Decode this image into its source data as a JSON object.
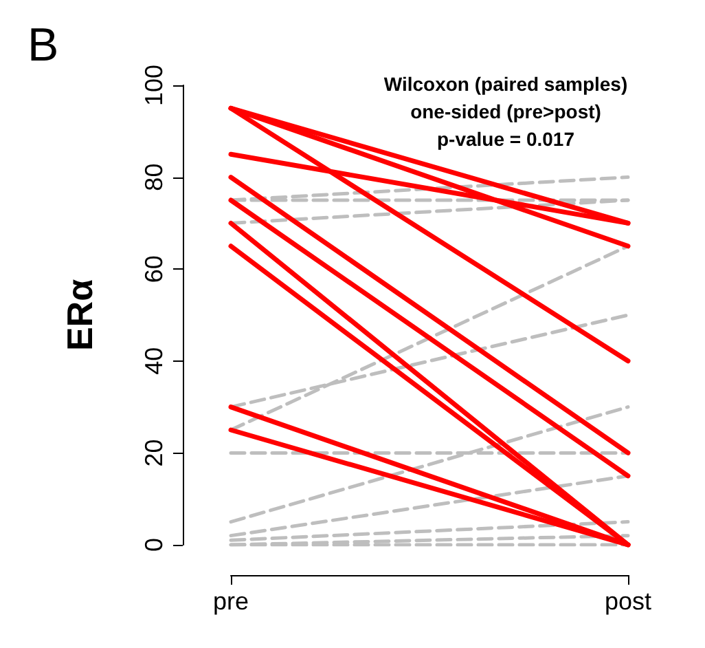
{
  "chart_data": {
    "type": "line",
    "title": "Wilcoxon (paired samples)\none-sided (pre>post)\np-value = 0.017",
    "annotations": [
      "B"
    ],
    "ylabel": "ERα",
    "categories": [
      "pre",
      "post"
    ],
    "ylim": [
      0,
      100
    ],
    "yticks": [
      0,
      20,
      40,
      60,
      80,
      100
    ],
    "grid": false,
    "marker": "none",
    "series": [
      {
        "color": "#bebebe",
        "line_style": "dashed",
        "values": [
          75,
          80
        ]
      },
      {
        "color": "#bebebe",
        "line_style": "dashed",
        "values": [
          75,
          75
        ]
      },
      {
        "color": "#bebebe",
        "line_style": "dashed",
        "values": [
          70,
          75
        ]
      },
      {
        "color": "#bebebe",
        "line_style": "dashed",
        "values": [
          25,
          65
        ]
      },
      {
        "color": "#bebebe",
        "line_style": "dashed",
        "values": [
          30,
          50
        ]
      },
      {
        "color": "#bebebe",
        "line_style": "dashed",
        "values": [
          20,
          20
        ]
      },
      {
        "color": "#bebebe",
        "line_style": "dashed",
        "values": [
          5,
          30
        ]
      },
      {
        "color": "#bebebe",
        "line_style": "dashed",
        "values": [
          2,
          15
        ]
      },
      {
        "color": "#bebebe",
        "line_style": "dashed",
        "values": [
          1,
          5
        ]
      },
      {
        "color": "#bebebe",
        "line_style": "dashed",
        "values": [
          0,
          2
        ]
      },
      {
        "color": "#bebebe",
        "line_style": "dashed",
        "values": [
          0,
          0
        ]
      },
      {
        "color": "#ff0000",
        "line_style": "solid",
        "values": [
          95,
          70
        ]
      },
      {
        "color": "#ff0000",
        "line_style": "solid",
        "values": [
          95,
          65
        ]
      },
      {
        "color": "#ff0000",
        "line_style": "solid",
        "values": [
          95,
          40
        ]
      },
      {
        "color": "#ff0000",
        "line_style": "solid",
        "values": [
          85,
          70
        ]
      },
      {
        "color": "#ff0000",
        "line_style": "solid",
        "values": [
          80,
          20
        ]
      },
      {
        "color": "#ff0000",
        "line_style": "solid",
        "values": [
          75,
          15
        ]
      },
      {
        "color": "#ff0000",
        "line_style": "solid",
        "values": [
          70,
          0
        ]
      },
      {
        "color": "#ff0000",
        "line_style": "solid",
        "values": [
          65,
          0
        ]
      },
      {
        "color": "#ff0000",
        "line_style": "solid",
        "values": [
          30,
          0
        ]
      },
      {
        "color": "#ff0000",
        "line_style": "solid",
        "values": [
          25,
          0
        ]
      }
    ]
  }
}
